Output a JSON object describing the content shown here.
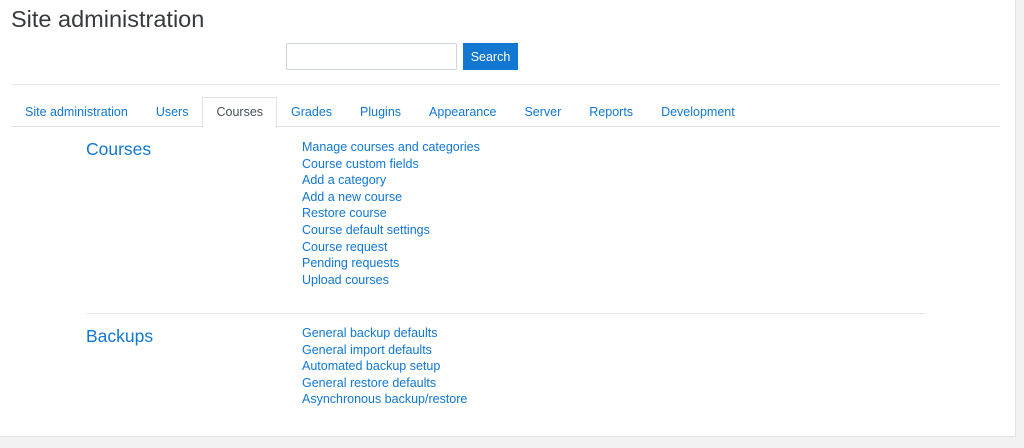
{
  "page_title": "Site administration",
  "search": {
    "value": "",
    "placeholder": "",
    "button_label": "Search"
  },
  "tabs": [
    {
      "label": "Site administration",
      "active": false
    },
    {
      "label": "Users",
      "active": false
    },
    {
      "label": "Courses",
      "active": true
    },
    {
      "label": "Grades",
      "active": false
    },
    {
      "label": "Plugins",
      "active": false
    },
    {
      "label": "Appearance",
      "active": false
    },
    {
      "label": "Server",
      "active": false
    },
    {
      "label": "Reports",
      "active": false
    },
    {
      "label": "Development",
      "active": false
    }
  ],
  "sections": [
    {
      "heading": "Courses",
      "links": [
        "Manage courses and categories",
        "Course custom fields",
        "Add a category",
        "Add a new course",
        "Restore course",
        "Course default settings",
        "Course request",
        "Pending requests",
        "Upload courses"
      ]
    },
    {
      "heading": "Backups",
      "links": [
        "General backup defaults",
        "General import defaults",
        "Automated backup setup",
        "General restore defaults",
        "Asynchronous backup/restore"
      ]
    }
  ],
  "colors": {
    "accent": "#1177d1",
    "text": "#373a3c"
  }
}
